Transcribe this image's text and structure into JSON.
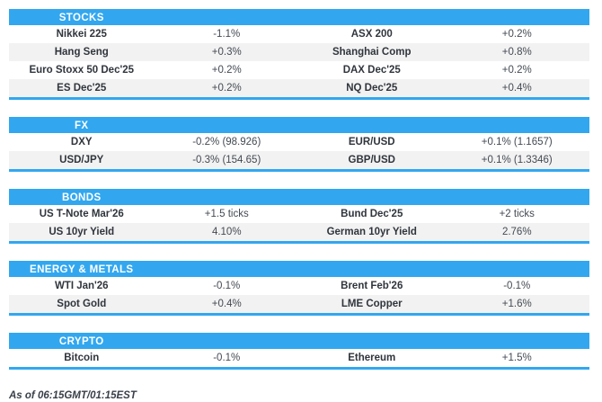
{
  "colors": {
    "accent": "#32a7ef",
    "row_stripe": "#f2f2f2",
    "name_text": "#30353c",
    "value_text": "#444a52"
  },
  "chart_data": [
    {
      "type": "table",
      "title": "STOCKS",
      "rows": [
        [
          "Nikkei 225",
          "-1.1%",
          "ASX 200",
          "+0.2%"
        ],
        [
          "Hang Seng",
          "+0.3%",
          "Shanghai Comp",
          "+0.8%"
        ],
        [
          "Euro Stoxx 50 Dec'25",
          "+0.2%",
          "DAX Dec'25",
          "+0.2%"
        ],
        [
          "ES Dec'25",
          "+0.2%",
          "NQ Dec'25",
          "+0.4%"
        ]
      ]
    },
    {
      "type": "table",
      "title": "FX",
      "rows": [
        [
          "DXY",
          "-0.2% (98.926)",
          "EUR/USD",
          "+0.1% (1.1657)"
        ],
        [
          "USD/JPY",
          "-0.3% (154.65)",
          "GBP/USD",
          "+0.1% (1.3346)"
        ]
      ]
    },
    {
      "type": "table",
      "title": "BONDS",
      "rows": [
        [
          "US T-Note Mar'26",
          "+1.5 ticks",
          "Bund Dec'25",
          "+2 ticks"
        ],
        [
          "US 10yr Yield",
          "4.10%",
          "German 10yr Yield",
          "2.76%"
        ]
      ]
    },
    {
      "type": "table",
      "title": "ENERGY & METALS",
      "rows": [
        [
          "WTI Jan'26",
          "-0.1%",
          "Brent Feb'26",
          "-0.1%"
        ],
        [
          "Spot Gold",
          "+0.4%",
          "LME Copper",
          "+1.6%"
        ]
      ]
    },
    {
      "type": "table",
      "title": "CRYPTO",
      "rows": [
        [
          "Bitcoin",
          "-0.1%",
          "Ethereum",
          "+1.5%"
        ]
      ]
    }
  ],
  "footer": {
    "as_of": "As of 06:15GMT/01:15EST"
  }
}
